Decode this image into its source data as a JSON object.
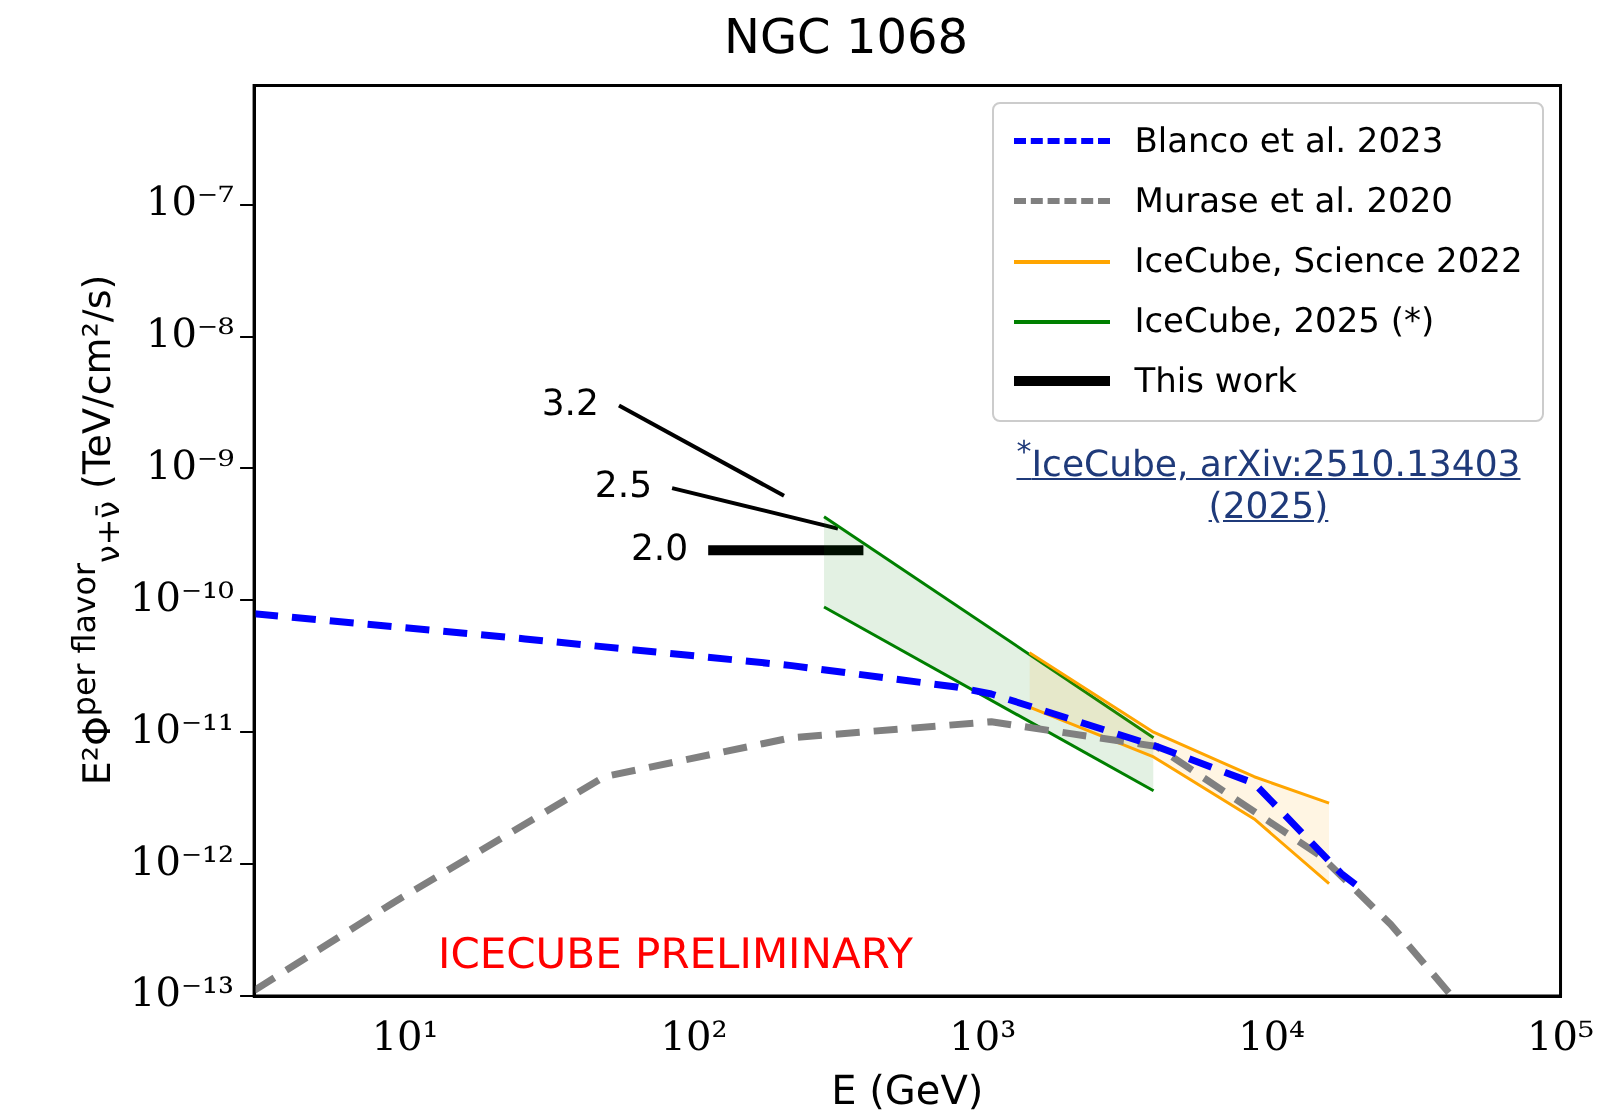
{
  "chart_data": {
    "type": "line",
    "title": "NGC 1068",
    "xlabel": "E (GeV)",
    "ylabel": "E²Φ$^{per flavor}$$_{ν+ν̄}$ (TeV/cm²/s)",
    "log": "xy",
    "grid": false,
    "legend": "top right",
    "marker": "none",
    "xlim": [
      3,
      100000
    ],
    "ylim": [
      1e-13,
      8e-07
    ],
    "xticks": [
      {
        "value": 10,
        "label": "10¹"
      },
      {
        "value": 100,
        "label": "10²"
      },
      {
        "value": 1000,
        "label": "10³"
      },
      {
        "value": 10000,
        "label": "10⁴"
      },
      {
        "value": 100000,
        "label": "10⁵"
      }
    ],
    "yticks": [
      {
        "value": 1e-13,
        "label": "10⁻¹³"
      },
      {
        "value": 1e-12,
        "label": "10⁻¹²"
      },
      {
        "value": 1e-11,
        "label": "10⁻¹¹"
      },
      {
        "value": 1e-10,
        "label": "10⁻¹⁰"
      },
      {
        "value": 1e-09,
        "label": "10⁻⁹"
      },
      {
        "value": 1e-08,
        "label": "10⁻⁸"
      },
      {
        "value": 1e-07,
        "label": "10⁻⁷"
      }
    ],
    "series": [
      {
        "name": "Blanco et al. 2023",
        "color": "#0000ff",
        "line_style": "dashed",
        "x": [
          3,
          26,
          218,
          810,
          1070,
          4000,
          8700,
          17400,
          19500
        ],
        "values": [
          7.9e-11,
          5.1e-11,
          3.2e-11,
          2.2e-11,
          1.95e-11,
          7.8e-12,
          4.1e-12,
          8.5e-13,
          7e-13
        ]
      },
      {
        "name": "Murase et al. 2020",
        "color": "#808080",
        "line_style": "dashed",
        "x": [
          3,
          9.1,
          49,
          218,
          1070,
          4000,
          14800,
          25800,
          42000
        ],
        "values": [
          1.1e-13,
          5.1e-13,
          4.6e-12,
          9.1e-12,
          1.2e-11,
          7.8e-12,
          1.15e-12,
          3.5e-13,
          1e-13
        ]
      },
      {
        "name": "IceCube, Science 2022",
        "color": "#ffa500",
        "line_style": "solid",
        "x": [
          1450,
          3900,
          8700,
          15800
        ],
        "values": [
          4e-11,
          1e-11,
          4.6e-12,
          2.9e-12
        ],
        "lower": [
          1.55e-11,
          6.5e-12,
          2.2e-12,
          7.1e-13
        ],
        "upper": [
          4e-11,
          1e-11,
          4.6e-12,
          2.9e-12
        ]
      },
      {
        "color": "#ffa500",
        "line_style": "solid",
        "x": [
          1450,
          3900,
          8700,
          15800
        ],
        "values": [
          1.55e-11,
          6.5e-12,
          2.2e-12,
          7.1e-13
        ]
      },
      {
        "name": "IceCube, 2025 (*)",
        "color": "#008000",
        "line_style": "solid",
        "x": [
          282,
          3900
        ],
        "values": [
          4.3e-10,
          9.1e-12
        ],
        "lower": [
          8.9e-11,
          3.6e-12
        ],
        "upper": [
          4.3e-10,
          9.1e-12
        ]
      },
      {
        "color": "#008000",
        "line_style": "solid",
        "x": [
          282,
          3900
        ],
        "values": [
          8.9e-11,
          3.6e-12
        ]
      },
      {
        "name": "This work",
        "color": "#000000",
        "line_style": "solid",
        "x": [
          112,
          386
        ],
        "values": [
          2.4e-10,
          2.4e-10
        ]
      },
      {
        "color": "#000000",
        "line_style": "solid",
        "x": [
          84,
          315
        ],
        "values": [
          7.1e-10,
          3.5e-10
        ]
      },
      {
        "color": "#000000",
        "line_style": "solid",
        "x": [
          55,
          205
        ],
        "values": [
          3e-09,
          6.2e-10
        ]
      }
    ],
    "annotations": [
      {
        "text": "3.2",
        "x": 55,
        "y": 3e-09
      },
      {
        "text": "2.5",
        "x": 84,
        "y": 7.1e-10
      },
      {
        "text": "2.0",
        "x": 112,
        "y": 2.4e-10
      },
      "ICECUBE PRELIMINARY",
      "$^{*}$IceCube, arXiv:2510.13403 (2025)"
    ]
  }
}
